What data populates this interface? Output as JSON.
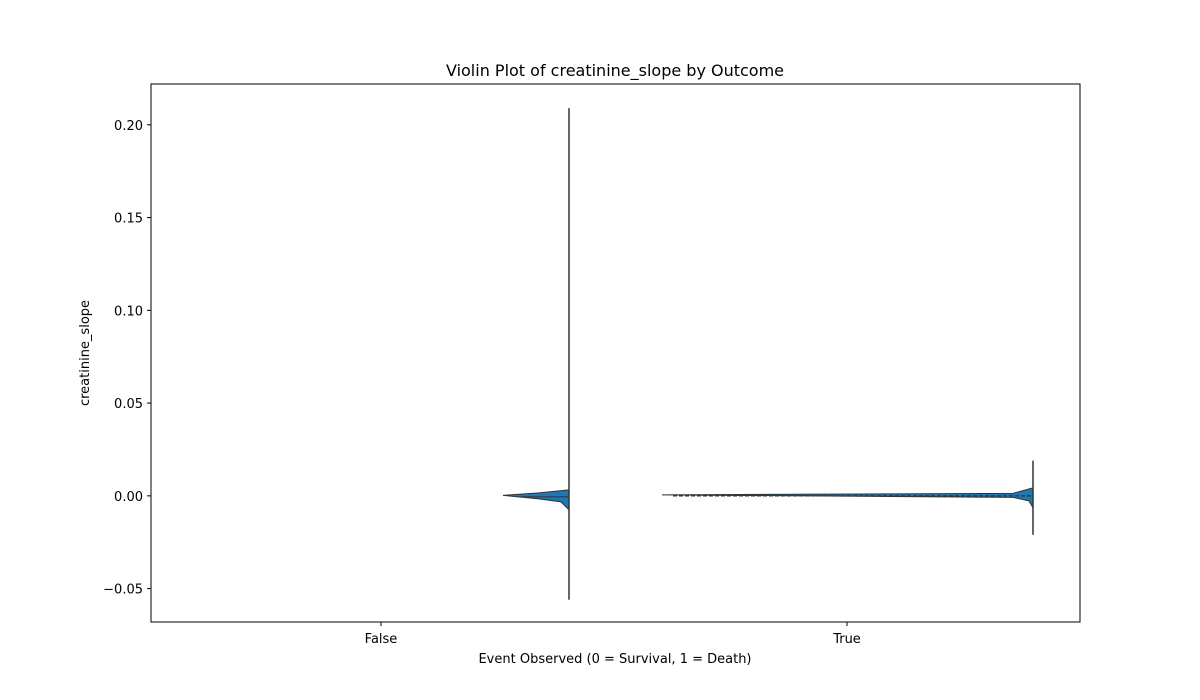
{
  "chart_data": {
    "type": "violin",
    "title": "Violin Plot of creatinine_slope by Outcome",
    "xlabel": "Event Observed (0 = Survival, 1 = Death)",
    "ylabel": "creatinine_slope",
    "categories": [
      "False",
      "True"
    ],
    "ylim": [
      -0.068,
      0.222
    ],
    "yticks": [
      -0.05,
      0.0,
      0.05,
      0.1,
      0.15,
      0.2
    ],
    "ytick_labels": [
      "−0.05",
      "0.00",
      "0.05",
      "0.10",
      "0.15",
      "0.20"
    ],
    "violins": [
      {
        "category": "False",
        "min": -0.056,
        "max": 0.209,
        "median": 0.0,
        "q1": -0.001,
        "q3": 0.001
      },
      {
        "category": "True",
        "min": -0.021,
        "max": 0.019,
        "median": 0.0,
        "q1": -0.0005,
        "q3": 0.0005
      }
    ],
    "grid": false,
    "fill_color": "#1f77b4",
    "line_color": "#333333"
  }
}
